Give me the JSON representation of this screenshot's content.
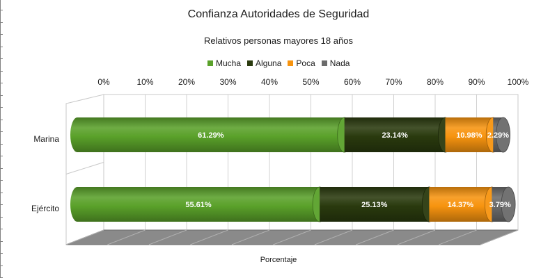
{
  "chart_data": {
    "type": "bar",
    "orientation": "horizontal",
    "stacked": "percent",
    "title": "Confianza Autoridades de Seguridad",
    "subtitle": "Relativos personas mayores 18 años",
    "xlabel": "Porcentaje",
    "xlim": [
      0,
      100
    ],
    "x_ticks": [
      "0%",
      "10%",
      "20%",
      "30%",
      "40%",
      "50%",
      "60%",
      "70%",
      "80%",
      "90%",
      "100%"
    ],
    "categories": [
      "Marina",
      "Ejército"
    ],
    "series": [
      {
        "name": "Mucha",
        "color": "#5aa12a",
        "values": [
          61.29,
          55.61
        ],
        "labels": [
          "61.29%",
          "55.61%"
        ]
      },
      {
        "name": "Alguna",
        "color": "#2a3a0e",
        "values": [
          23.14,
          25.13
        ],
        "labels": [
          "23.14%",
          "25.13%"
        ]
      },
      {
        "name": "Poca",
        "color": "#f7940f",
        "values": [
          10.98,
          14.37
        ],
        "labels": [
          "10.98%",
          "14.37%"
        ]
      },
      {
        "name": "Nada",
        "color": "#6b6b6b",
        "values": [
          2.29,
          3.79
        ],
        "labels": [
          "2.29%",
          "3.79%"
        ]
      }
    ],
    "legend_position": "top",
    "grid": true,
    "style": "3d-cylinder"
  }
}
